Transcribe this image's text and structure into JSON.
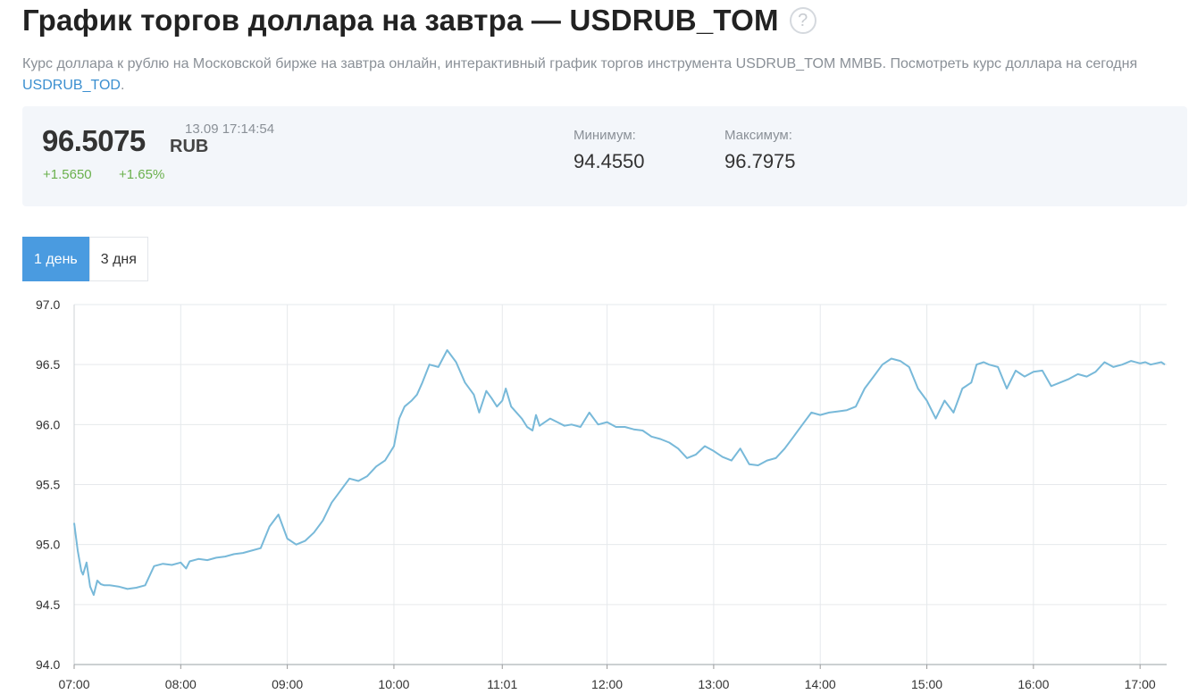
{
  "header": {
    "title": "График торгов доллара на завтра — USDRUB_TOM",
    "help_icon": "?",
    "description_text": "Курс доллара к рублю на Московской бирже на завтра онлайн, интерактивный график торгов инструмента USDRUB_TOM ММВБ. Посмотреть курс доллара на сегодня ",
    "description_link": "USDRUB_TOD",
    "description_end": "."
  },
  "quote": {
    "price": "96.5075",
    "currency": "RUB",
    "timestamp": "13.09 17:14:54",
    "change_abs": "+1.5650",
    "change_pct": "+1.65%",
    "min_label": "Минимум:",
    "min_value": "94.4550",
    "max_label": "Максимум:",
    "max_value": "96.7975"
  },
  "periods": [
    {
      "label": "1 день",
      "active": true
    },
    {
      "label": "3 дня",
      "active": false
    }
  ],
  "colors": {
    "line": "#78b9d9",
    "grid": "#e6e9ec",
    "positive": "#6ab04c",
    "accent": "#4a9be0"
  },
  "chart_data": {
    "type": "line",
    "title": "",
    "xlabel": "",
    "ylabel": "",
    "ylim": [
      94.0,
      97.0
    ],
    "yticks": [
      "94.0",
      "94.5",
      "95.0",
      "95.5",
      "96.0",
      "96.5",
      "97.0"
    ],
    "xlim": [
      "07:00",
      "17:15"
    ],
    "xticks": [
      "07:00",
      "08:00",
      "09:00",
      "10:00",
      "11:01",
      "12:00",
      "13:00",
      "14:00",
      "15:00",
      "16:00",
      "17:00"
    ],
    "grid": true,
    "series": [
      {
        "x": [
          "07:00",
          "07:02",
          "07:04",
          "07:05",
          "07:07",
          "07:09",
          "07:11",
          "07:13",
          "07:15",
          "07:17",
          "07:20",
          "07:25",
          "07:30",
          "07:35",
          "07:40",
          "07:45",
          "07:50",
          "07:55",
          "08:00",
          "08:03",
          "08:05",
          "08:10",
          "08:15",
          "08:20",
          "08:25",
          "08:30",
          "08:35",
          "08:40",
          "08:45",
          "08:50",
          "08:55",
          "09:00",
          "09:05",
          "09:10",
          "09:15",
          "09:20",
          "09:25",
          "09:30",
          "09:35",
          "09:40",
          "09:45",
          "09:50",
          "09:55",
          "10:00",
          "10:03",
          "10:06",
          "10:10",
          "10:13",
          "10:16",
          "10:20",
          "10:25",
          "10:30",
          "10:35",
          "10:40",
          "10:45",
          "10:48",
          "10:52",
          "10:55",
          "10:58",
          "11:01",
          "11:03",
          "11:06",
          "11:09",
          "11:12",
          "11:15",
          "11:18",
          "11:20",
          "11:22",
          "11:25",
          "11:28",
          "11:32",
          "11:36",
          "11:40",
          "11:45",
          "11:50",
          "11:55",
          "12:00",
          "12:05",
          "12:10",
          "12:15",
          "12:20",
          "12:25",
          "12:30",
          "12:35",
          "12:40",
          "12:45",
          "12:50",
          "12:55",
          "13:00",
          "13:05",
          "13:10",
          "13:15",
          "13:20",
          "13:25",
          "13:30",
          "13:35",
          "13:40",
          "13:45",
          "13:50",
          "13:55",
          "14:00",
          "14:05",
          "14:10",
          "14:15",
          "14:20",
          "14:25",
          "14:30",
          "14:35",
          "14:40",
          "14:45",
          "14:50",
          "14:55",
          "15:00",
          "15:05",
          "15:10",
          "15:15",
          "15:20",
          "15:25",
          "15:28",
          "15:32",
          "15:35",
          "15:40",
          "15:45",
          "15:50",
          "15:55",
          "16:00",
          "16:05",
          "16:10",
          "16:15",
          "16:20",
          "16:25",
          "16:30",
          "16:35",
          "16:40",
          "16:45",
          "16:50",
          "16:55",
          "17:00",
          "17:03",
          "17:06",
          "17:09",
          "17:12",
          "17:14"
        ],
        "y": [
          95.18,
          94.95,
          94.78,
          94.75,
          94.85,
          94.65,
          94.58,
          94.7,
          94.67,
          94.66,
          94.66,
          94.65,
          94.63,
          94.64,
          94.66,
          94.82,
          94.84,
          94.83,
          94.85,
          94.8,
          94.86,
          94.88,
          94.87,
          94.89,
          94.9,
          94.92,
          94.93,
          94.95,
          94.97,
          95.15,
          95.25,
          95.05,
          95.0,
          95.03,
          95.1,
          95.2,
          95.35,
          95.45,
          95.55,
          95.53,
          95.57,
          95.65,
          95.7,
          95.82,
          96.05,
          96.15,
          96.2,
          96.25,
          96.35,
          96.5,
          96.48,
          96.62,
          96.52,
          96.35,
          96.25,
          96.1,
          96.28,
          96.22,
          96.15,
          96.2,
          96.3,
          96.15,
          96.1,
          96.05,
          95.98,
          95.95,
          96.08,
          95.99,
          96.02,
          96.05,
          96.02,
          95.99,
          96.0,
          95.98,
          96.1,
          96.0,
          96.02,
          95.98,
          95.98,
          95.96,
          95.95,
          95.9,
          95.88,
          95.85,
          95.8,
          95.72,
          95.75,
          95.82,
          95.78,
          95.73,
          95.7,
          95.8,
          95.67,
          95.66,
          95.7,
          95.72,
          95.8,
          95.9,
          96.0,
          96.1,
          96.08,
          96.1,
          96.11,
          96.12,
          96.15,
          96.3,
          96.4,
          96.5,
          96.55,
          96.53,
          96.48,
          96.3,
          96.2,
          96.05,
          96.2,
          96.1,
          96.3,
          96.35,
          96.5,
          96.52,
          96.5,
          96.48,
          96.3,
          96.45,
          96.4,
          96.44,
          96.45,
          96.32,
          96.35,
          96.38,
          96.42,
          96.4,
          96.44,
          96.52,
          96.48,
          96.5,
          96.53,
          96.51,
          96.52,
          96.5,
          96.51,
          96.52,
          96.5
        ]
      }
    ]
  }
}
